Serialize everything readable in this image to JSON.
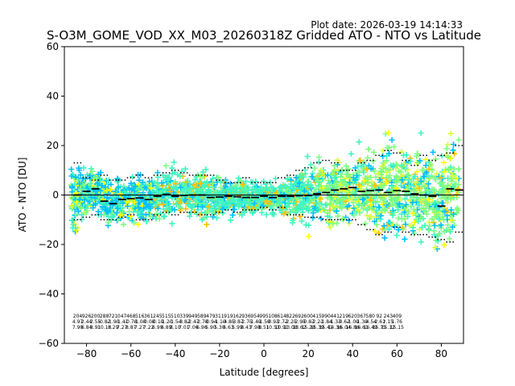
{
  "plot_date": "Plot date: 2026-03-19 14:14:33",
  "chart_data": {
    "type": "scatter",
    "title": "S-O3M_GOME_VOD_XX_M03_20260318Z Gridded ATO - NTO vs Latitude",
    "xlabel": "Latitude [degrees]",
    "ylabel": "ATO - NTO [DU]",
    "xlim": [
      -90,
      90
    ],
    "ylim": [
      -60,
      60
    ],
    "xticks": [
      -80,
      -60,
      -40,
      -20,
      0,
      20,
      40,
      60,
      80
    ],
    "yticks": [
      -60,
      -40,
      -20,
      0,
      20,
      40,
      60
    ],
    "xtick_labels": [
      "−80",
      "−60",
      "−40",
      "−20",
      "0",
      "20",
      "40",
      "60",
      "80"
    ],
    "ytick_labels": [
      "−60",
      "−40",
      "−20",
      "0",
      "20",
      "40",
      "60"
    ],
    "zero_line": 0,
    "marker": "+",
    "colors": [
      "#0000cc",
      "#00bfff",
      "#40f5c0",
      "#7fff7f",
      "#d8ff40",
      "#ffff00",
      "#ffc000"
    ],
    "mean_bins": {
      "lat": [
        -84,
        -80,
        -76,
        -72,
        -68,
        -64,
        -60,
        -56,
        -52,
        -48,
        -44,
        -40,
        -36,
        -32,
        -28,
        -24,
        -20,
        -16,
        -12,
        -8,
        -4,
        0,
        4,
        8,
        12,
        16,
        20,
        24,
        28,
        32,
        36,
        40,
        44,
        48,
        52,
        56,
        60,
        64,
        68,
        72,
        76,
        80,
        84,
        88
      ],
      "mean": [
        0,
        1.5,
        2.5,
        -2.5,
        -3.5,
        -1.8,
        -1.5,
        -1.2,
        -1.8,
        -0.5,
        0.3,
        -0.5,
        -0.2,
        0.0,
        0.0,
        -1.0,
        -0.8,
        -0.5,
        -0.7,
        -1.0,
        -1.0,
        -0.5,
        -1.0,
        -0.5,
        -0.5,
        -0.3,
        -0.2,
        0.5,
        1.0,
        2.0,
        2.5,
        3.0,
        1.5,
        1.8,
        2.0,
        1.0,
        1.8,
        1.5,
        0.5,
        0.0,
        -0.5,
        -4.5,
        2.5,
        2.0
      ],
      "upper": [
        13,
        7,
        6,
        8,
        6,
        6,
        7,
        8,
        7,
        8,
        9,
        10,
        9,
        8,
        8,
        8,
        6,
        5,
        5,
        7,
        5,
        5,
        5,
        7,
        8,
        10,
        11,
        13,
        14,
        13,
        10,
        10,
        13,
        14,
        16,
        18,
        17,
        14,
        12,
        16,
        14,
        16,
        17,
        20
      ],
      "lower": [
        -10,
        -9,
        -8,
        -10,
        -10,
        -9,
        -8,
        -10,
        -10,
        -8,
        -7,
        -8,
        -7,
        -7,
        -8,
        -8,
        -7,
        -6,
        -7,
        -6,
        -6,
        -5,
        -6,
        -5,
        -8,
        -8,
        -9,
        -9,
        -10,
        -10,
        -10,
        -10,
        -12,
        -14,
        -16,
        -15,
        -13,
        -15,
        -16,
        -16,
        -17,
        -18,
        -19,
        -15
      ]
    },
    "bin_stats": [
      {
        "lat": -84,
        "n": "204",
        "mean": "4.97",
        "sd": "7.90"
      },
      {
        "lat": -80,
        "n": "926",
        "mean": "2.44",
        "sd": "6.84"
      },
      {
        "lat": -76,
        "n": "200",
        "mean": "2.55",
        "sd": "8.91"
      },
      {
        "lat": -72,
        "n": "288",
        "mean": "-0.82",
        "sd": "10.13"
      },
      {
        "lat": -68,
        "n": "721",
        "mean": "-1.90",
        "sd": "8.29"
      },
      {
        "lat": -64,
        "n": "047",
        "mean": "-1.41",
        "sd": "7.27"
      },
      {
        "lat": -60,
        "n": "468",
        "mean": "-0.78",
        "sd": "8.87"
      },
      {
        "lat": -56,
        "n": "516",
        "mean": "-1.00",
        "sd": "7.27"
      },
      {
        "lat": -52,
        "n": "361",
        "mean": "-0.08",
        "sd": "7.22"
      },
      {
        "lat": -48,
        "n": "245",
        "mean": "-0.19",
        "sd": "6.99"
      },
      {
        "lat": -44,
        "n": "515",
        "mean": "-1.20",
        "sd": "6.89"
      },
      {
        "lat": -40,
        "n": "510",
        "mean": "-1.54",
        "sd": "8.10"
      },
      {
        "lat": -36,
        "n": "339",
        "mean": "-3.82",
        "sd": "7.01"
      },
      {
        "lat": -32,
        "n": "949",
        "mean": "-2.47",
        "sd": "7.06"
      },
      {
        "lat": -28,
        "n": "589",
        "mean": "-2.78",
        "sd": "6.96"
      },
      {
        "lat": -24,
        "n": "479",
        "mean": "-0.94",
        "sd": "5.90"
      },
      {
        "lat": -20,
        "n": "311",
        "mean": "-1.10",
        "sd": "5.30"
      },
      {
        "lat": -16,
        "n": "919",
        "mean": "-4.85",
        "sd": "6.63"
      },
      {
        "lat": -12,
        "n": "162",
        "mean": "-3.87",
        "sd": "5.99"
      },
      {
        "lat": -8,
        "n": "936",
        "mean": "-2.75",
        "sd": "8.43"
      },
      {
        "lat": -4,
        "n": "954",
        "mean": "-1.49",
        "sd": "7.98"
      },
      {
        "lat": 0,
        "n": "995",
        "mean": "-1.59",
        "sd": "8.51"
      },
      {
        "lat": 4,
        "n": "108",
        "mean": "-0.93",
        "sd": "10.53"
      },
      {
        "lat": 8,
        "n": "614",
        "mean": "-2.72",
        "sd": "10.91"
      },
      {
        "lat": 12,
        "n": "822",
        "mean": "-2.25",
        "sd": "13.08"
      },
      {
        "lat": 16,
        "n": "692",
        "mean": "-2.95",
        "sd": "13.62"
      },
      {
        "lat": 20,
        "n": "600",
        "mean": "-0.87",
        "sd": "15.28"
      },
      {
        "lat": 24,
        "n": "415",
        "mean": "-2.21",
        "sd": "15.39"
      },
      {
        "lat": 28,
        "n": "990",
        "mean": "-1.84",
        "sd": "15.41"
      },
      {
        "lat": 32,
        "n": "441",
        "mean": "-1.33",
        "sd": "14.36"
      },
      {
        "lat": 36,
        "n": "219",
        "mean": "-0.62",
        "sd": "16.04"
      },
      {
        "lat": 40,
        "n": "620",
        "mean": "-1.09",
        "sd": "16.86"
      },
      {
        "lat": 44,
        "n": "367",
        "mean": "-1.39",
        "sd": "16.61"
      },
      {
        "lat": 48,
        "n": "580",
        "mean": "-4.54",
        "sd": "16.49"
      },
      {
        "lat": 52,
        "n": "92",
        "mean": "-2.61",
        "sd": "15.75"
      },
      {
        "lat": 56,
        "n": "243",
        "mean": "2.15",
        "sd": "15.12"
      },
      {
        "lat": 60,
        "n": "409",
        "mean": "1.76",
        "sd": "15.15"
      }
    ]
  }
}
